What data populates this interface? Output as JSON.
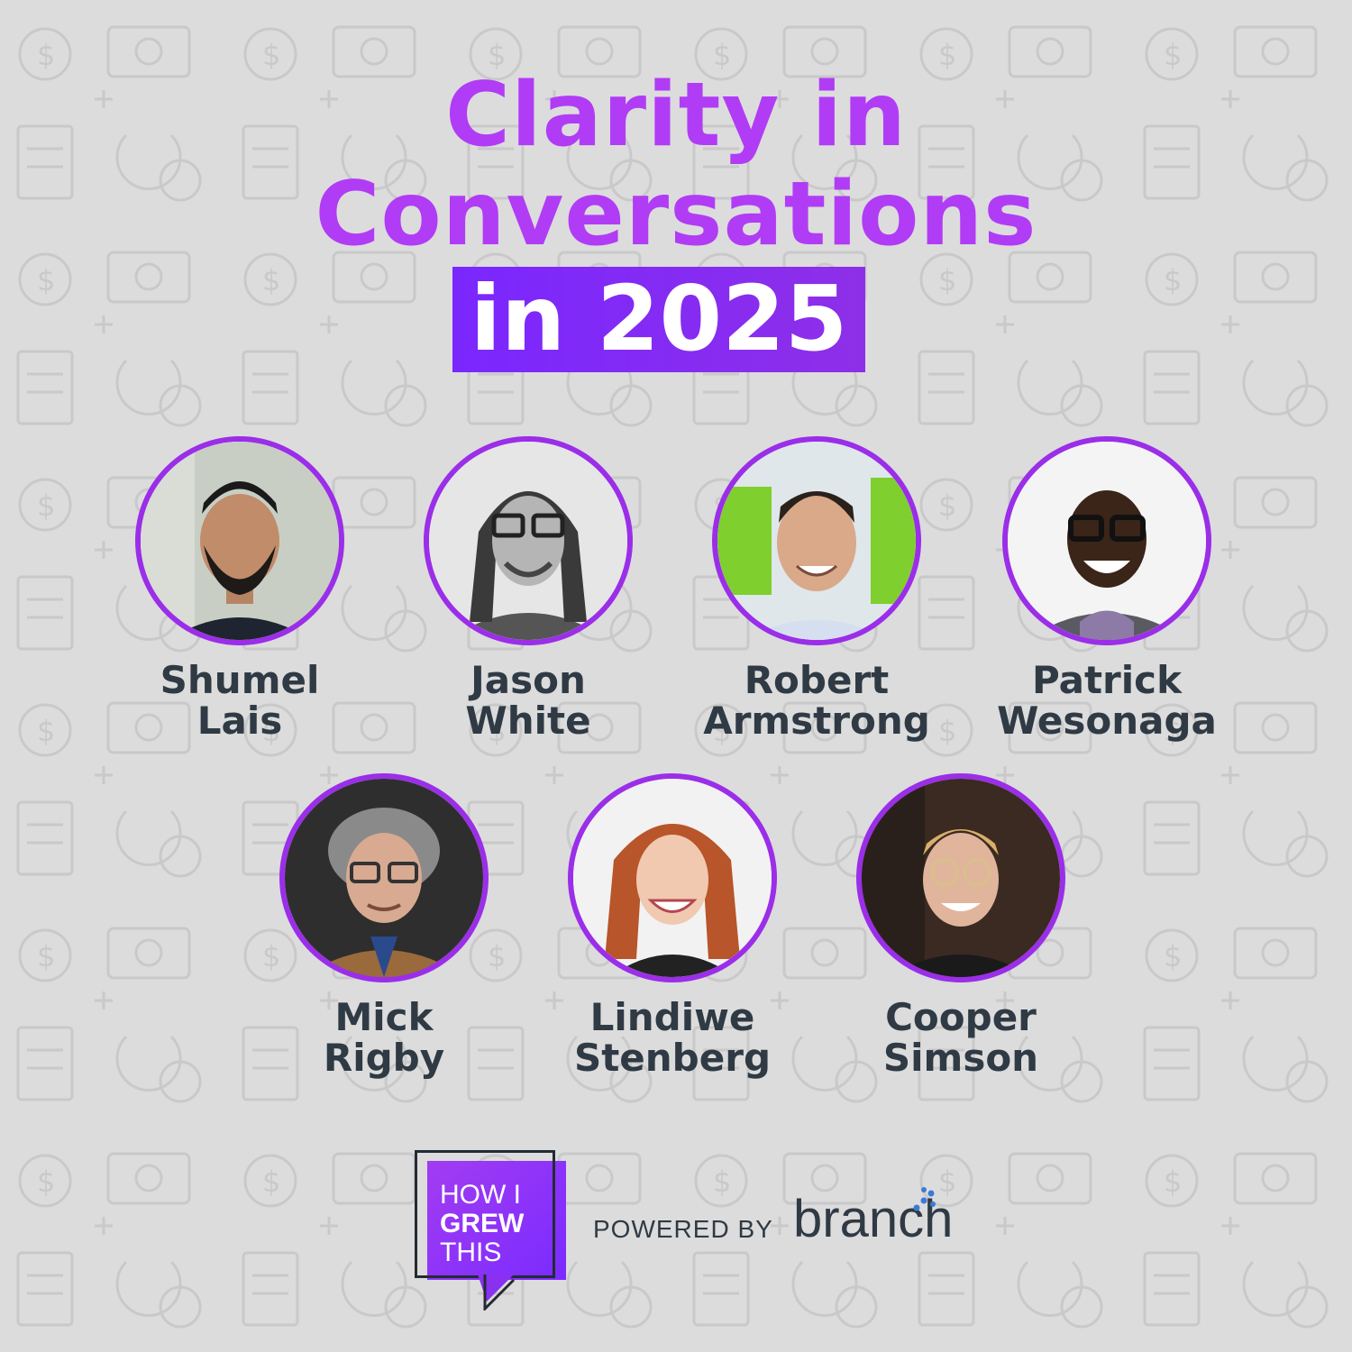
{
  "title": {
    "line1": "Clarity in",
    "line2": "Conversations",
    "year_line": "in 2025"
  },
  "guests": [
    {
      "first": "Shumel",
      "last": "Lais"
    },
    {
      "first": "Jason",
      "last": "White"
    },
    {
      "first": "Robert",
      "last": "Armstrong"
    },
    {
      "first": "Patrick",
      "last": "Wesonaga"
    },
    {
      "first": "Mick",
      "last": "Rigby"
    },
    {
      "first": "Lindiwe",
      "last": "Stenberg"
    },
    {
      "first": "Cooper",
      "last": "Simson"
    }
  ],
  "footer": {
    "logo": {
      "line1": "HOW I",
      "line2": "GREW",
      "line3": "THIS"
    },
    "powered_by": "POWERED BY",
    "brand": "branch"
  },
  "colors": {
    "title_purple": "#b13cf5",
    "accent_purple": "#7a27ff",
    "text_dark": "#2f3a44",
    "background": "#dcdcdc"
  }
}
